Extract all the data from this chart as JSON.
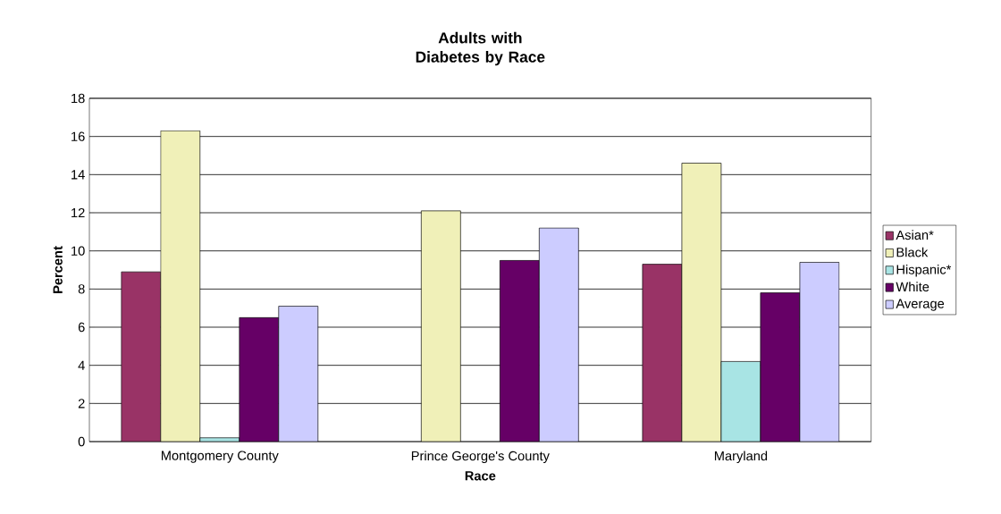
{
  "chart_data": {
    "type": "bar",
    "title": "Adults with Diabetes by Race",
    "xlabel": "Race",
    "ylabel": "Percent",
    "categories": [
      "Montgomery County",
      "Prince George's County",
      "Maryland"
    ],
    "series": [
      {
        "name": "Asian*",
        "color": "#993366",
        "values": [
          8.9,
          null,
          9.3
        ]
      },
      {
        "name": "Black",
        "color": "#f0f0b8",
        "values": [
          16.3,
          12.1,
          14.6
        ]
      },
      {
        "name": "Hispanic*",
        "color": "#a8e4e4",
        "values": [
          0.2,
          null,
          4.2
        ]
      },
      {
        "name": "White",
        "color": "#660066",
        "values": [
          6.5,
          9.5,
          7.8
        ]
      },
      {
        "name": "Average",
        "color": "#ccccff",
        "values": [
          7.1,
          11.2,
          9.4
        ]
      }
    ],
    "ylim": [
      0,
      18
    ],
    "yticks": [
      0,
      2,
      4,
      6,
      8,
      10,
      12,
      14,
      16,
      18
    ],
    "grid": "y",
    "legend": "right"
  }
}
